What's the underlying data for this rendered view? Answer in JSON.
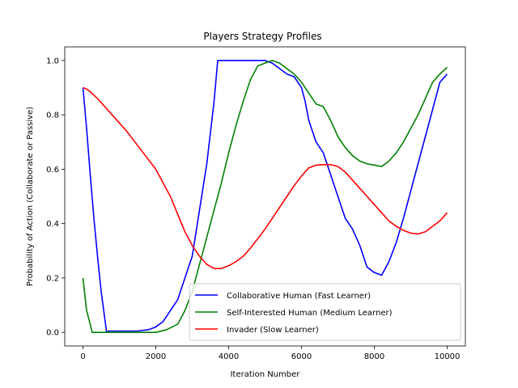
{
  "chart_data": {
    "type": "line",
    "title": "Players Strategy Profiles",
    "xlabel": "Iteration Number",
    "ylabel": "Probability of Action (Collaborate or Passive)",
    "xlim": [
      -500,
      10500
    ],
    "ylim": [
      -0.05,
      1.05
    ],
    "xticks": [
      0,
      2000,
      4000,
      6000,
      8000,
      10000
    ],
    "xtick_labels": [
      "0",
      "2000",
      "4000",
      "6000",
      "8000",
      "10000"
    ],
    "yticks": [
      0.0,
      0.2,
      0.4,
      0.6,
      0.8,
      1.0
    ],
    "ytick_labels": [
      "0.0",
      "0.2",
      "0.4",
      "0.6",
      "0.8",
      "1.0"
    ],
    "legend_position": "lower-right",
    "series": [
      {
        "name": "Collaborative Human (Fast Learner)",
        "color": "#0000ff",
        "x": [
          0,
          100,
          200,
          300,
          400,
          500,
          650,
          700,
          1000,
          1500,
          1800,
          2000,
          2200,
          2400,
          2600,
          2800,
          3000,
          3200,
          3400,
          3600,
          3700,
          4000,
          4500,
          4800,
          5000,
          5200,
          5400,
          5600,
          5800,
          6000,
          6100,
          6200,
          6400,
          6600,
          6800,
          7000,
          7200,
          7400,
          7600,
          7800,
          8000,
          8200,
          8400,
          8600,
          8800,
          9000,
          9200,
          9400,
          9600,
          9800,
          10000
        ],
        "y": [
          0.9,
          0.75,
          0.58,
          0.42,
          0.28,
          0.15,
          0.0,
          0.005,
          0.005,
          0.005,
          0.01,
          0.02,
          0.04,
          0.08,
          0.12,
          0.2,
          0.28,
          0.45,
          0.62,
          0.85,
          1.0,
          1.0,
          1.0,
          1.0,
          1.0,
          0.99,
          0.97,
          0.95,
          0.94,
          0.9,
          0.85,
          0.78,
          0.7,
          0.66,
          0.58,
          0.5,
          0.42,
          0.38,
          0.32,
          0.24,
          0.22,
          0.21,
          0.26,
          0.33,
          0.42,
          0.52,
          0.62,
          0.72,
          0.82,
          0.92,
          0.95
        ]
      },
      {
        "name": "Self-Interested Human (Medium Learner)",
        "color": "#008000",
        "x": [
          0,
          100,
          200,
          250,
          500,
          1000,
          1500,
          2000,
          2300,
          2600,
          2800,
          3000,
          3200,
          3400,
          3600,
          3800,
          4000,
          4200,
          4400,
          4600,
          4800,
          5000,
          5200,
          5400,
          5600,
          5800,
          6000,
          6200,
          6400,
          6600,
          6800,
          7000,
          7200,
          7400,
          7600,
          7800,
          8000,
          8200,
          8400,
          8600,
          8800,
          9000,
          9200,
          9400,
          9600,
          9800,
          10000
        ],
        "y": [
          0.2,
          0.08,
          0.03,
          0.0,
          0.0,
          0.0,
          0.0,
          0.0,
          0.01,
          0.03,
          0.08,
          0.15,
          0.25,
          0.35,
          0.45,
          0.55,
          0.66,
          0.76,
          0.85,
          0.93,
          0.98,
          0.99,
          1.0,
          0.99,
          0.97,
          0.95,
          0.92,
          0.88,
          0.84,
          0.83,
          0.78,
          0.72,
          0.68,
          0.65,
          0.63,
          0.62,
          0.615,
          0.61,
          0.63,
          0.66,
          0.7,
          0.75,
          0.8,
          0.86,
          0.92,
          0.95,
          0.975
        ]
      },
      {
        "name": "Invader (Slow Learner)",
        "color": "#ff0000",
        "x": [
          0,
          100,
          200,
          400,
          800,
          1200,
          1600,
          2000,
          2400,
          2800,
          3000,
          3200,
          3400,
          3600,
          3800,
          4000,
          4200,
          4400,
          4600,
          4800,
          5000,
          5200,
          5400,
          5600,
          5800,
          6000,
          6200,
          6400,
          6600,
          6800,
          7000,
          7200,
          7400,
          7600,
          7800,
          8000,
          8200,
          8400,
          8600,
          8800,
          9000,
          9200,
          9400,
          9600,
          9800,
          10000
        ],
        "y": [
          0.9,
          0.895,
          0.885,
          0.86,
          0.8,
          0.74,
          0.67,
          0.6,
          0.5,
          0.37,
          0.32,
          0.28,
          0.25,
          0.235,
          0.235,
          0.245,
          0.26,
          0.28,
          0.31,
          0.345,
          0.38,
          0.42,
          0.46,
          0.5,
          0.54,
          0.575,
          0.605,
          0.615,
          0.617,
          0.617,
          0.61,
          0.59,
          0.56,
          0.53,
          0.5,
          0.47,
          0.44,
          0.41,
          0.39,
          0.375,
          0.365,
          0.362,
          0.37,
          0.39,
          0.41,
          0.44
        ]
      }
    ]
  }
}
